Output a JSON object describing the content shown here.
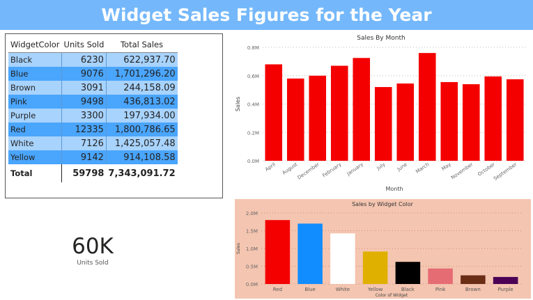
{
  "header": {
    "title": "Widget Sales Figures for the Year"
  },
  "table": {
    "columns": [
      "WidgetColor",
      "Units Sold",
      "Total Sales"
    ],
    "rows": [
      {
        "color": "Black",
        "units": "6230",
        "sales": "622,937.70"
      },
      {
        "color": "Blue",
        "units": "9076",
        "sales": "1,701,296.20"
      },
      {
        "color": "Brown",
        "units": "3091",
        "sales": "244,158.09"
      },
      {
        "color": "Pink",
        "units": "9498",
        "sales": "436,813.02"
      },
      {
        "color": "Purple",
        "units": "3300",
        "sales": "197,934.00"
      },
      {
        "color": "Red",
        "units": "12335",
        "sales": "1,800,786.65"
      },
      {
        "color": "White",
        "units": "7126",
        "sales": "1,425,057.48"
      },
      {
        "color": "Yellow",
        "units": "9142",
        "sales": "914,108.58"
      }
    ],
    "total": {
      "label": "Total",
      "units": "59798",
      "sales": "7,343,091.72"
    }
  },
  "kpi": {
    "value": "60K",
    "label": "Units Sold"
  },
  "chart_data": [
    {
      "type": "bar",
      "title": "Sales By Month",
      "xlabel": "Month",
      "ylabel": "Sales",
      "categories": [
        "April",
        "August",
        "December",
        "February",
        "January",
        "July",
        "June",
        "March",
        "May",
        "November",
        "October",
        "September"
      ],
      "values": [
        680000,
        580000,
        600000,
        670000,
        725000,
        520000,
        545000,
        760000,
        555000,
        540000,
        595000,
        575000
      ],
      "ylim": [
        0,
        800000
      ],
      "yticks": [
        0,
        200000,
        400000,
        600000,
        800000
      ],
      "ytick_labels": [
        "0.0M",
        "0.2M",
        "0.4M",
        "0.6M",
        "0.8M"
      ],
      "grid": true,
      "bar_color": "#f50000",
      "background": "#ffffff"
    },
    {
      "type": "bar",
      "title": "Sales by Widget Color",
      "xlabel": "Color of Widget",
      "ylabel": "Sales",
      "categories": [
        "Red",
        "Blue",
        "White",
        "Yellow",
        "Black",
        "Pink",
        "Brown",
        "Purple"
      ],
      "values": [
        1800786.65,
        1701296.2,
        1425057.48,
        914108.58,
        622937.7,
        436813.02,
        244158.09,
        197934.0
      ],
      "colors": [
        "#f50000",
        "#118dff",
        "#ffffff",
        "#e0b000",
        "#000000",
        "#e66c74",
        "#6a2e16",
        "#4b0055"
      ],
      "ylim": [
        0,
        2000000
      ],
      "yticks": [
        0,
        500000,
        1000000,
        1500000,
        2000000
      ],
      "ytick_labels": [
        "0.0M",
        "0.5M",
        "1.0M",
        "1.5M",
        "2.0M"
      ],
      "grid": true,
      "background": "#f4c5b0"
    }
  ]
}
